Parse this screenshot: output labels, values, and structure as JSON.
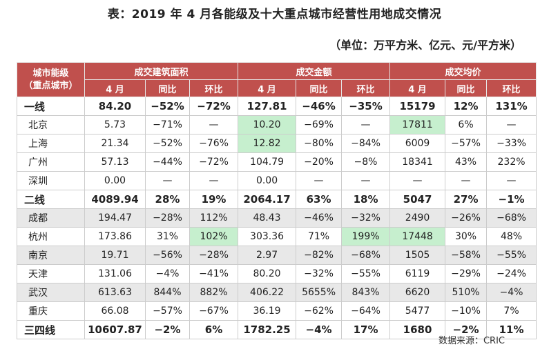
{
  "title": "表：2019 年 4 月各能级及十大重点城市经营性用地成交情况",
  "unit": "（单位：万平方米、亿元、元/平方米）",
  "header": {
    "col0": "城市能级\n（重点城市）",
    "groups": [
      "成交建筑面积",
      "成交金额",
      "成交均价"
    ],
    "sub": [
      "4 月",
      "同比",
      "环比",
      "4 月",
      "同比",
      "环比",
      "4 月",
      "同比",
      "环比"
    ]
  },
  "rows": [
    {
      "name": "一线",
      "tier": true,
      "stripe": false,
      "cells": [
        "84.20",
        "−52%",
        "−72%",
        "127.81",
        "−46%",
        "−35%",
        "15179",
        "12%",
        "131%"
      ],
      "highlight": []
    },
    {
      "name": "北京",
      "tier": false,
      "stripe": false,
      "cells": [
        "5.73",
        "−71%",
        "—",
        "10.20",
        "−69%",
        "—",
        "17811",
        "6%",
        "—"
      ],
      "highlight": [
        3,
        6
      ]
    },
    {
      "name": "上海",
      "tier": false,
      "stripe": false,
      "cells": [
        "21.34",
        "−52%",
        "−76%",
        "12.82",
        "−80%",
        "−84%",
        "6009",
        "−57%",
        "−33%"
      ],
      "highlight": [
        3
      ]
    },
    {
      "name": "广州",
      "tier": false,
      "stripe": false,
      "cells": [
        "57.13",
        "−44%",
        "−72%",
        "104.79",
        "−20%",
        "−8%",
        "18341",
        "43%",
        "232%"
      ],
      "highlight": []
    },
    {
      "name": "深圳",
      "tier": false,
      "stripe": false,
      "cells": [
        "0.00",
        "—",
        "—",
        "0.00",
        "—",
        "—",
        "—",
        "—",
        "—"
      ],
      "highlight": []
    },
    {
      "name": "二线",
      "tier": true,
      "stripe": false,
      "cells": [
        "4089.94",
        "28%",
        "19%",
        "2064.17",
        "63%",
        "18%",
        "5047",
        "27%",
        "−1%"
      ],
      "highlight": []
    },
    {
      "name": "成都",
      "tier": false,
      "stripe": true,
      "cells": [
        "194.47",
        "−28%",
        "112%",
        "48.43",
        "−46%",
        "−32%",
        "2490",
        "−26%",
        "−68%"
      ],
      "highlight": [
        0,
        2
      ]
    },
    {
      "name": "杭州",
      "tier": false,
      "stripe": false,
      "cells": [
        "173.86",
        "31%",
        "102%",
        "303.36",
        "71%",
        "199%",
        "17448",
        "30%",
        "48%"
      ],
      "highlight": [
        2,
        5,
        6
      ]
    },
    {
      "name": "南京",
      "tier": false,
      "stripe": true,
      "cells": [
        "19.71",
        "−56%",
        "−28%",
        "2.97",
        "−82%",
        "−68%",
        "1505",
        "−58%",
        "−55%"
      ],
      "highlight": [
        0
      ]
    },
    {
      "name": "天津",
      "tier": false,
      "stripe": false,
      "cells": [
        "131.06",
        "−4%",
        "−41%",
        "80.20",
        "−32%",
        "−55%",
        "6119",
        "−29%",
        "−24%"
      ],
      "highlight": []
    },
    {
      "name": "武汉",
      "tier": false,
      "stripe": true,
      "cells": [
        "613.63",
        "844%",
        "882%",
        "406.22",
        "5655%",
        "843%",
        "6620",
        "510%",
        "−4%"
      ],
      "highlight": [
        2
      ]
    },
    {
      "name": "重庆",
      "tier": false,
      "stripe": false,
      "cells": [
        "66.08",
        "−57%",
        "−67%",
        "36.19",
        "−62%",
        "−64%",
        "5477",
        "−10%",
        "7%"
      ],
      "highlight": []
    },
    {
      "name": "三四线",
      "tier": true,
      "stripe": false,
      "cells": [
        "10607.87",
        "−2%",
        "6%",
        "1782.25",
        "−4%",
        "17%",
        "1680",
        "−2%",
        "11%"
      ],
      "highlight": []
    }
  ],
  "source": "数据来源：CRIC"
}
